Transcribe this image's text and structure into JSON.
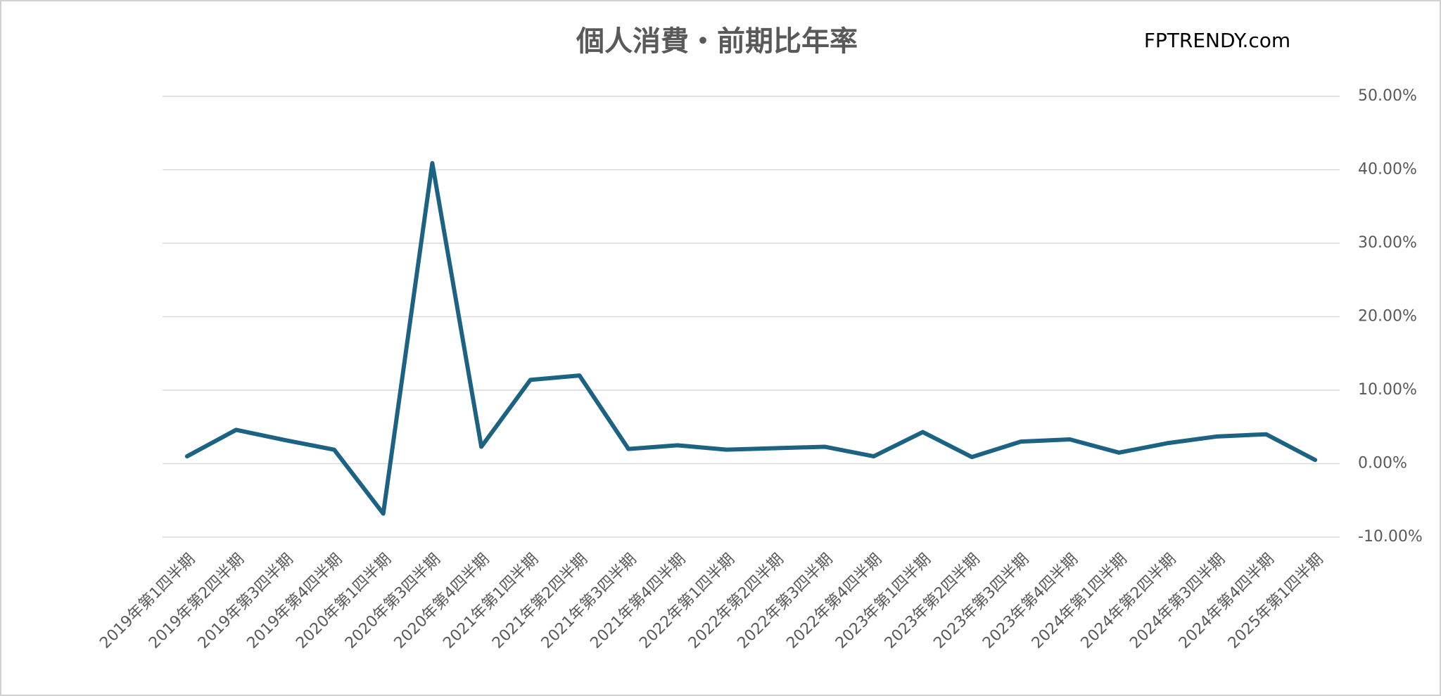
{
  "chart_data": {
    "type": "line",
    "title": "個人消費・前期比年率",
    "annotation": "FPTRENDY.com",
    "categories": [
      "2019年第1四半期",
      "2019年第2四半期",
      "2019年第3四半期",
      "2019年第4四半期",
      "2020年第1四半期",
      "2020年第3四半期",
      "2020年第4四半期",
      "2021年第1四半期",
      "2021年第2四半期",
      "2021年第3四半期",
      "2021年第4四半期",
      "2022年第1四半期",
      "2022年第2四半期",
      "2022年第3四半期",
      "2022年第4四半期",
      "2023年第1四半期",
      "2023年第2四半期",
      "2023年第3四半期",
      "2023年第4四半期",
      "2024年第1四半期",
      "2024年第2四半期",
      "2024年第3四半期",
      "2024年第4四半期",
      "2025年第1四半期"
    ],
    "values": [
      1.0,
      4.6,
      3.2,
      1.9,
      -6.8,
      40.9,
      2.3,
      11.4,
      12.0,
      2.0,
      2.5,
      1.9,
      2.1,
      2.3,
      1.0,
      4.3,
      0.9,
      3.0,
      3.3,
      1.5,
      2.8,
      3.7,
      4.0,
      0.5
    ],
    "color": "#1b6283",
    "ylim": [
      -10,
      50
    ],
    "yticks": [
      {
        "value": -10,
        "label": "-10.00%"
      },
      {
        "value": 0,
        "label": "0.00%"
      },
      {
        "value": 10,
        "label": "10.00%"
      },
      {
        "value": 20,
        "label": "20.00%"
      },
      {
        "value": 30,
        "label": "30.00%"
      },
      {
        "value": 40,
        "label": "40.00%"
      },
      {
        "value": 50,
        "label": "50.00%"
      }
    ],
    "grid": true
  }
}
